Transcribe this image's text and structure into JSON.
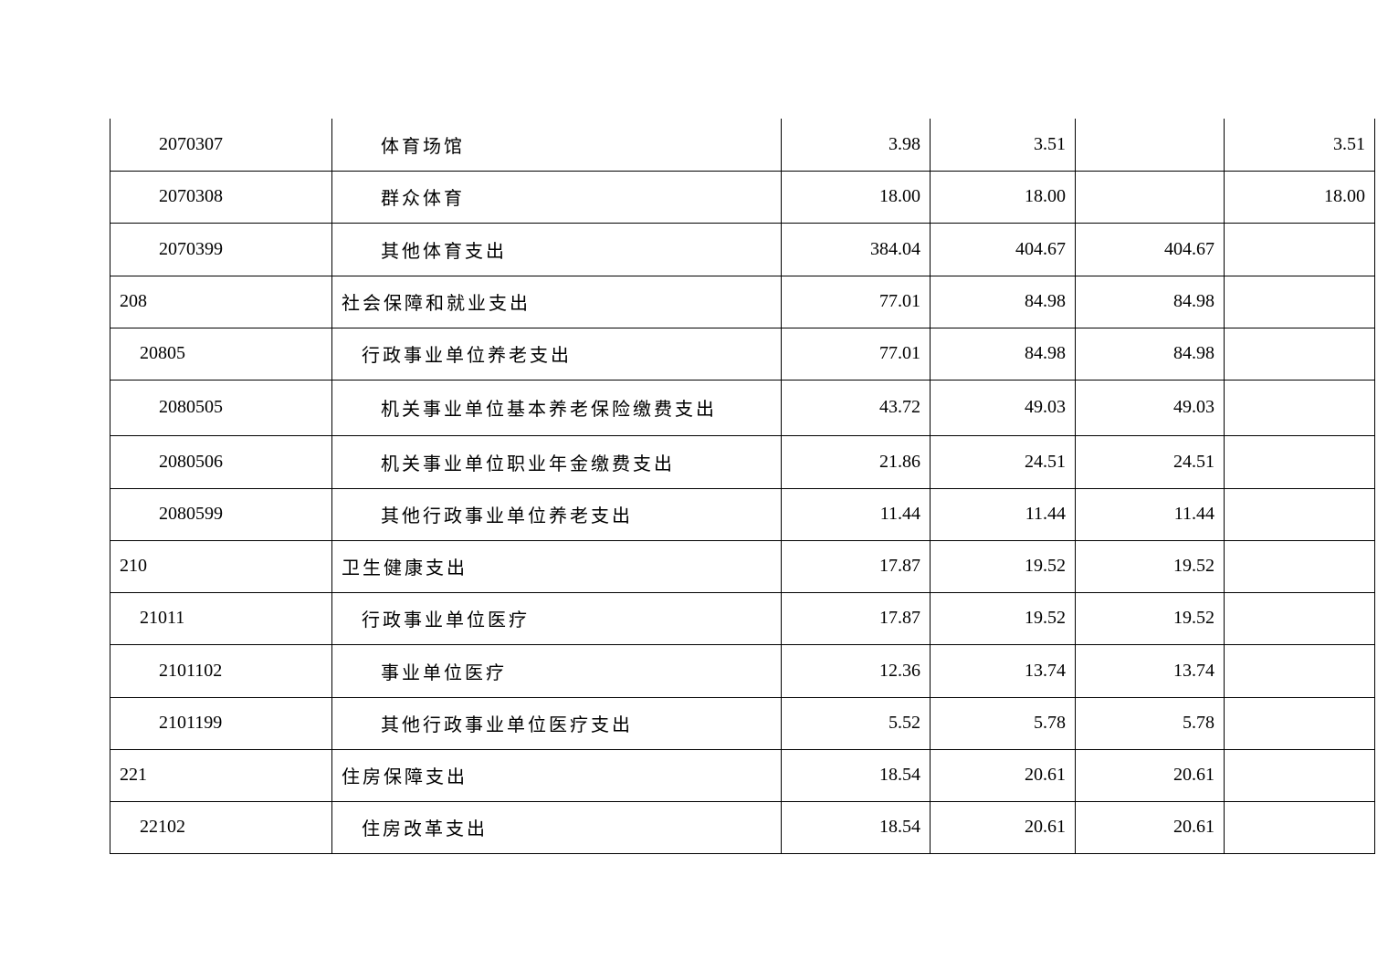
{
  "rows": [
    {
      "code": "2070307",
      "name": "体育场馆",
      "level": 2,
      "c1": "3.98",
      "c2": "3.51",
      "c3": "",
      "c4": "3.51"
    },
    {
      "code": "2070308",
      "name": "群众体育",
      "level": 2,
      "c1": "18.00",
      "c2": "18.00",
      "c3": "",
      "c4": "18.00"
    },
    {
      "code": "2070399",
      "name": "其他体育支出",
      "level": 2,
      "c1": "384.04",
      "c2": "404.67",
      "c3": "404.67",
      "c4": ""
    },
    {
      "code": "208",
      "name": "社会保障和就业支出",
      "level": 0,
      "c1": "77.01",
      "c2": "84.98",
      "c3": "84.98",
      "c4": ""
    },
    {
      "code": "20805",
      "name": "行政事业单位养老支出",
      "level": 1,
      "c1": "77.01",
      "c2": "84.98",
      "c3": "84.98",
      "c4": ""
    },
    {
      "code": "2080505",
      "name": "机关事业单位基本养老保险缴费支出",
      "level": 2,
      "c1": "43.72",
      "c2": "49.03",
      "c3": "49.03",
      "c4": ""
    },
    {
      "code": "2080506",
      "name": "机关事业单位职业年金缴费支出",
      "level": 2,
      "c1": "21.86",
      "c2": "24.51",
      "c3": "24.51",
      "c4": ""
    },
    {
      "code": "2080599",
      "name": "其他行政事业单位养老支出",
      "level": 2,
      "c1": "11.44",
      "c2": "11.44",
      "c3": "11.44",
      "c4": ""
    },
    {
      "code": "210",
      "name": "卫生健康支出",
      "level": 0,
      "c1": "17.87",
      "c2": "19.52",
      "c3": "19.52",
      "c4": ""
    },
    {
      "code": "21011",
      "name": "行政事业单位医疗",
      "level": 1,
      "c1": "17.87",
      "c2": "19.52",
      "c3": "19.52",
      "c4": ""
    },
    {
      "code": "2101102",
      "name": "事业单位医疗",
      "level": 2,
      "c1": "12.36",
      "c2": "13.74",
      "c3": "13.74",
      "c4": ""
    },
    {
      "code": "2101199",
      "name": "其他行政事业单位医疗支出",
      "level": 2,
      "c1": "5.52",
      "c2": "5.78",
      "c3": "5.78",
      "c4": ""
    },
    {
      "code": "221",
      "name": "住房保障支出",
      "level": 0,
      "c1": "18.54",
      "c2": "20.61",
      "c3": "20.61",
      "c4": ""
    },
    {
      "code": "22102",
      "name": "住房改革支出",
      "level": 1,
      "c1": "18.54",
      "c2": "20.61",
      "c3": "20.61",
      "c4": ""
    }
  ]
}
